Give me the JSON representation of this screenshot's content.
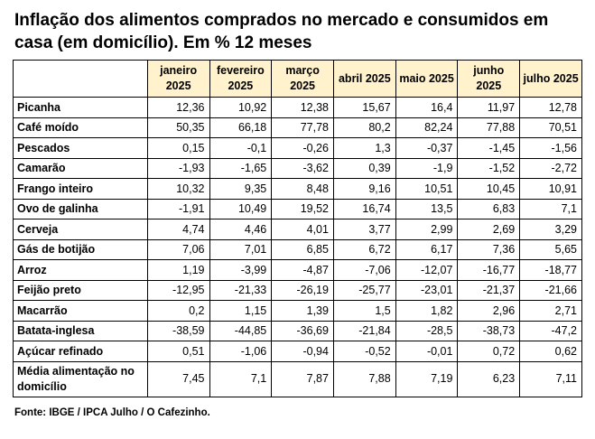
{
  "title": "Inflação dos alimentos comprados no mercado e consumidos em casa (em domicílio). Em % 12 meses",
  "columns": [
    "janeiro 2025",
    "fevereiro 2025",
    "março 2025",
    "abril 2025",
    "maio 2025",
    "junho 2025",
    "julho 2025"
  ],
  "rows": [
    {
      "label": "Picanha",
      "values": [
        "12,36",
        "10,92",
        "12,38",
        "15,67",
        "16,4",
        "11,97",
        "12,78"
      ]
    },
    {
      "label": "Café moído",
      "values": [
        "50,35",
        "66,18",
        "77,78",
        "80,2",
        "82,24",
        "77,88",
        "70,51"
      ]
    },
    {
      "label": "Pescados",
      "values": [
        "0,15",
        "-0,1",
        "-0,26",
        "1,3",
        "-0,37",
        "-1,45",
        "-1,56"
      ]
    },
    {
      "label": "Camarão",
      "values": [
        "-1,93",
        "-1,65",
        "-3,62",
        "0,39",
        "-1,9",
        "-1,52",
        "-2,72"
      ]
    },
    {
      "label": "Frango inteiro",
      "values": [
        "10,32",
        "9,35",
        "8,48",
        "9,16",
        "10,51",
        "10,45",
        "10,91"
      ]
    },
    {
      "label": "Ovo de galinha",
      "values": [
        "-1,91",
        "10,49",
        "19,52",
        "16,74",
        "13,5",
        "6,83",
        "7,1"
      ]
    },
    {
      "label": "Cerveja",
      "values": [
        "4,74",
        "4,46",
        "4,01",
        "3,77",
        "2,99",
        "2,69",
        "3,29"
      ]
    },
    {
      "label": "Gás de botijão",
      "values": [
        "7,06",
        "7,01",
        "6,85",
        "6,72",
        "6,17",
        "7,36",
        "5,65"
      ]
    },
    {
      "label": "Arroz",
      "values": [
        "1,19",
        "-3,99",
        "-4,87",
        "-7,06",
        "-12,07",
        "-16,77",
        "-18,77"
      ]
    },
    {
      "label": "Feijão preto",
      "values": [
        "-12,95",
        "-21,33",
        "-26,19",
        "-25,77",
        "-23,01",
        "-21,37",
        "-21,66"
      ]
    },
    {
      "label": "Macarrão",
      "values": [
        "0,2",
        "1,15",
        "1,39",
        "1,5",
        "1,82",
        "2,96",
        "2,71"
      ]
    },
    {
      "label": "Batata-inglesa",
      "values": [
        "-38,59",
        "-44,85",
        "-36,69",
        "-21,84",
        "-28,5",
        "-38,73",
        "-47,2"
      ]
    },
    {
      "label": "Açúcar refinado",
      "values": [
        "0,51",
        "-1,06",
        "-0,94",
        "-0,52",
        "-0,01",
        "0,72",
        "0,62"
      ]
    },
    {
      "label": "Média alimentação no domicílio",
      "values": [
        "7,45",
        "7,1",
        "7,87",
        "7,88",
        "7,19",
        "6,23",
        "7,11"
      ]
    }
  ],
  "source": "Fonte: IBGE / IPCA Julho / O Cafezinho.",
  "colors": {
    "header_bg": "#fff2cc",
    "border": "#000000"
  }
}
